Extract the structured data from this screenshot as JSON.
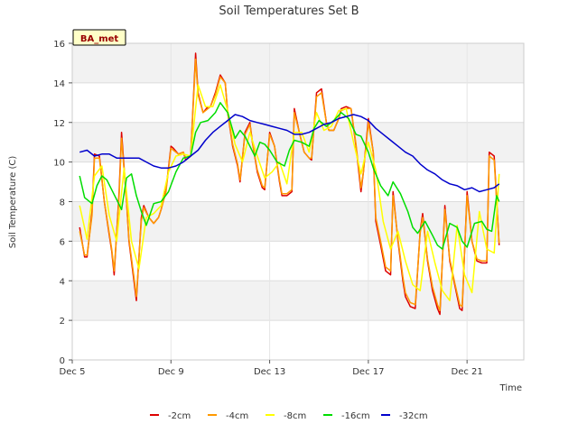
{
  "chart_data": {
    "type": "line",
    "title": "Soil Temperatures Set B",
    "xlabel": "Time",
    "ylabel": "Soil Temperature (C)",
    "badge": "BA_met",
    "ylim": [
      0,
      16
    ],
    "yticks": [
      0,
      2,
      4,
      6,
      8,
      10,
      12,
      14,
      16
    ],
    "xlim": [
      0,
      18.3
    ],
    "xticks": [
      {
        "value": 0,
        "label": "Dec 5"
      },
      {
        "value": 4,
        "label": "Dec 9"
      },
      {
        "value": 8,
        "label": "Dec 13"
      },
      {
        "value": 12,
        "label": "Dec 17"
      },
      {
        "value": 16,
        "label": "Dec 21"
      }
    ],
    "grid": true,
    "legend_position": "bottom",
    "series": [
      {
        "name": "-2cm",
        "color": "#dd0000",
        "x": [
          0.3,
          0.5,
          0.6,
          0.8,
          0.9,
          1.1,
          1.3,
          1.5,
          1.6,
          1.7,
          1.9,
          2.0,
          2.2,
          2.3,
          2.5,
          2.6,
          2.8,
          2.9,
          3.1,
          3.3,
          3.5,
          3.6,
          3.8,
          4.0,
          4.1,
          4.3,
          4.5,
          4.6,
          4.8,
          5.0,
          5.1,
          5.3,
          5.5,
          5.6,
          5.8,
          6.0,
          6.2,
          6.3,
          6.5,
          6.7,
          6.8,
          7.0,
          7.2,
          7.3,
          7.5,
          7.7,
          7.8,
          8.0,
          8.2,
          8.4,
          8.5,
          8.7,
          8.9,
          9.0,
          9.2,
          9.4,
          9.6,
          9.7,
          9.9,
          10.1,
          10.3,
          10.4,
          10.6,
          10.8,
          10.9,
          11.1,
          11.3,
          11.5,
          11.7,
          11.8,
          12.0,
          12.2,
          12.3,
          12.5,
          12.7,
          12.9,
          13.0,
          13.2,
          13.4,
          13.5,
          13.7,
          13.9,
          14.1,
          14.2,
          14.4,
          14.6,
          14.8,
          14.9,
          15.1,
          15.3,
          15.5,
          15.7,
          15.8,
          16.0,
          16.2,
          16.4,
          16.6,
          16.8,
          16.9,
          17.1,
          17.3
        ],
        "values": [
          6.7,
          5.2,
          5.2,
          7.5,
          10.4,
          10.3,
          8.0,
          6.3,
          5.5,
          4.3,
          8.5,
          11.5,
          8.0,
          6.0,
          4.0,
          3.0,
          7.2,
          7.8,
          7.2,
          6.9,
          7.2,
          7.6,
          8.6,
          10.8,
          10.7,
          10.4,
          10.5,
          10.1,
          10.3,
          15.5,
          13.5,
          12.5,
          12.8,
          12.8,
          13.5,
          14.4,
          14.0,
          12.5,
          10.8,
          9.8,
          9.0,
          11.5,
          12.0,
          11.0,
          9.5,
          8.7,
          8.6,
          11.5,
          10.8,
          9.0,
          8.3,
          8.3,
          8.5,
          12.7,
          11.5,
          10.5,
          10.2,
          10.1,
          13.5,
          13.7,
          12.0,
          11.6,
          11.6,
          12.2,
          12.7,
          12.8,
          12.7,
          10.8,
          8.5,
          9.5,
          12.2,
          10.5,
          7.0,
          5.8,
          4.5,
          4.3,
          8.5,
          6.0,
          4.0,
          3.2,
          2.7,
          2.6,
          6.5,
          7.4,
          5.0,
          3.5,
          2.6,
          2.3,
          7.8,
          5.0,
          3.8,
          2.6,
          2.5,
          8.5,
          6.0,
          5.0,
          4.9,
          4.9,
          10.5,
          10.3,
          5.8
        ]
      },
      {
        "name": "-4cm",
        "color": "#ff9900",
        "x": [
          0.3,
          0.5,
          0.6,
          0.8,
          0.9,
          1.1,
          1.3,
          1.5,
          1.6,
          1.7,
          1.9,
          2.0,
          2.2,
          2.3,
          2.5,
          2.6,
          2.8,
          2.9,
          3.1,
          3.3,
          3.5,
          3.6,
          3.8,
          4.0,
          4.1,
          4.3,
          4.5,
          4.6,
          4.8,
          5.0,
          5.1,
          5.3,
          5.5,
          5.6,
          5.8,
          6.0,
          6.2,
          6.3,
          6.5,
          6.7,
          6.8,
          7.0,
          7.2,
          7.3,
          7.5,
          7.7,
          7.8,
          8.0,
          8.2,
          8.4,
          8.5,
          8.7,
          8.9,
          9.0,
          9.2,
          9.4,
          9.6,
          9.7,
          9.9,
          10.1,
          10.3,
          10.4,
          10.6,
          10.8,
          10.9,
          11.1,
          11.3,
          11.5,
          11.7,
          11.8,
          12.0,
          12.2,
          12.3,
          12.5,
          12.7,
          12.9,
          13.0,
          13.2,
          13.4,
          13.5,
          13.7,
          13.9,
          14.1,
          14.2,
          14.4,
          14.6,
          14.8,
          14.9,
          15.1,
          15.3,
          15.5,
          15.7,
          15.8,
          16.0,
          16.2,
          16.4,
          16.6,
          16.8,
          16.9,
          17.1,
          17.3
        ],
        "values": [
          6.5,
          5.3,
          5.3,
          7.3,
          10.2,
          10.2,
          8.0,
          6.4,
          5.6,
          4.5,
          8.3,
          11.2,
          8.0,
          6.1,
          4.2,
          3.2,
          7.0,
          7.7,
          7.2,
          6.9,
          7.2,
          7.6,
          8.5,
          10.7,
          10.6,
          10.4,
          10.5,
          10.2,
          10.3,
          15.2,
          13.4,
          12.5,
          12.7,
          12.8,
          13.4,
          14.3,
          14.0,
          12.5,
          10.9,
          9.9,
          9.1,
          11.4,
          11.9,
          11.0,
          9.6,
          8.8,
          8.7,
          11.4,
          10.8,
          9.1,
          8.4,
          8.4,
          8.6,
          12.5,
          11.5,
          10.5,
          10.2,
          10.2,
          13.3,
          13.5,
          12.0,
          11.6,
          11.6,
          12.2,
          12.6,
          12.7,
          12.7,
          10.9,
          8.7,
          9.5,
          12.0,
          10.5,
          7.2,
          6.0,
          4.7,
          4.5,
          8.3,
          6.1,
          4.2,
          3.4,
          2.9,
          2.8,
          6.4,
          7.2,
          5.1,
          3.7,
          2.8,
          2.5,
          7.6,
          5.1,
          3.9,
          2.8,
          2.7,
          8.3,
          6.0,
          5.1,
          5.0,
          5.0,
          10.3,
          10.1,
          5.9
        ]
      },
      {
        "name": "-8cm",
        "color": "#ffff00",
        "x": [
          0.3,
          0.6,
          0.9,
          1.2,
          1.5,
          1.8,
          2.1,
          2.4,
          2.7,
          3.0,
          3.3,
          3.6,
          3.9,
          4.2,
          4.5,
          4.8,
          5.1,
          5.4,
          5.7,
          6.0,
          6.3,
          6.6,
          6.9,
          7.2,
          7.5,
          7.8,
          8.1,
          8.4,
          8.7,
          9.0,
          9.3,
          9.6,
          9.9,
          10.2,
          10.5,
          10.8,
          11.1,
          11.4,
          11.7,
          12.0,
          12.3,
          12.6,
          12.9,
          13.2,
          13.5,
          13.8,
          14.1,
          14.4,
          14.7,
          15.0,
          15.3,
          15.6,
          15.9,
          16.2,
          16.5,
          16.8,
          17.1,
          17.3
        ],
        "values": [
          7.8,
          6.1,
          9.3,
          9.8,
          7.3,
          6.0,
          9.7,
          6.0,
          4.6,
          7.2,
          7.4,
          7.8,
          9.5,
          10.3,
          10.4,
          10.3,
          13.9,
          12.8,
          12.8,
          13.9,
          12.6,
          10.9,
          10.0,
          11.5,
          10.3,
          9.2,
          9.5,
          10.0,
          8.9,
          11.5,
          11.5,
          10.5,
          12.5,
          11.6,
          11.8,
          12.6,
          12.7,
          11.0,
          9.4,
          11.0,
          9.6,
          7.0,
          5.6,
          6.5,
          5.0,
          3.8,
          3.5,
          6.5,
          4.9,
          3.5,
          3.0,
          6.8,
          4.3,
          3.4,
          7.5,
          5.6,
          5.4,
          9.4
        ]
      },
      {
        "name": "-16cm",
        "color": "#00dd00",
        "x": [
          0.3,
          0.5,
          0.8,
          1.0,
          1.2,
          1.4,
          1.6,
          1.8,
          2.0,
          2.2,
          2.4,
          2.6,
          2.8,
          3.0,
          3.3,
          3.6,
          3.9,
          4.2,
          4.5,
          4.8,
          5.0,
          5.2,
          5.5,
          5.8,
          6.0,
          6.3,
          6.6,
          6.8,
          7.0,
          7.2,
          7.4,
          7.6,
          7.8,
          8.0,
          8.3,
          8.6,
          8.8,
          9.0,
          9.3,
          9.6,
          9.8,
          10.0,
          10.3,
          10.6,
          10.9,
          11.2,
          11.5,
          11.7,
          12.0,
          12.2,
          12.5,
          12.8,
          13.0,
          13.3,
          13.6,
          13.8,
          14.0,
          14.3,
          14.6,
          14.8,
          15.0,
          15.3,
          15.6,
          15.8,
          16.0,
          16.3,
          16.6,
          16.8,
          17.0,
          17.2,
          17.3
        ],
        "values": [
          9.3,
          8.2,
          7.9,
          8.8,
          9.3,
          9.1,
          8.6,
          8.1,
          7.6,
          9.2,
          9.4,
          8.3,
          7.5,
          6.8,
          7.9,
          8.0,
          8.5,
          9.5,
          10.2,
          10.3,
          11.5,
          12.0,
          12.1,
          12.5,
          13.0,
          12.5,
          11.2,
          11.6,
          11.3,
          10.8,
          10.3,
          11.0,
          10.9,
          10.6,
          10.0,
          9.8,
          10.6,
          11.1,
          11.0,
          10.8,
          11.7,
          12.1,
          11.8,
          12.1,
          12.5,
          12.2,
          11.4,
          11.3,
          10.5,
          9.7,
          8.8,
          8.3,
          9.0,
          8.4,
          7.5,
          6.7,
          6.4,
          7.0,
          6.3,
          5.8,
          5.6,
          6.9,
          6.7,
          6.0,
          5.7,
          6.9,
          7.0,
          6.6,
          6.5,
          8.3,
          8.0
        ]
      },
      {
        "name": "-32cm",
        "color": "#0000cc",
        "x": [
          0.3,
          0.6,
          0.9,
          1.2,
          1.5,
          1.8,
          2.1,
          2.4,
          2.7,
          3.0,
          3.3,
          3.6,
          3.9,
          4.2,
          4.5,
          4.8,
          5.1,
          5.4,
          5.7,
          6.0,
          6.3,
          6.6,
          6.9,
          7.2,
          7.5,
          7.8,
          8.1,
          8.4,
          8.7,
          9.0,
          9.3,
          9.6,
          9.9,
          10.2,
          10.5,
          10.8,
          11.1,
          11.4,
          11.7,
          12.0,
          12.3,
          12.6,
          12.9,
          13.2,
          13.5,
          13.8,
          14.1,
          14.4,
          14.7,
          15.0,
          15.3,
          15.6,
          15.9,
          16.2,
          16.5,
          16.8,
          17.1,
          17.3
        ],
        "values": [
          10.5,
          10.6,
          10.3,
          10.4,
          10.4,
          10.2,
          10.2,
          10.2,
          10.2,
          10.0,
          9.8,
          9.7,
          9.7,
          9.8,
          10.0,
          10.3,
          10.6,
          11.1,
          11.5,
          11.8,
          12.1,
          12.4,
          12.3,
          12.1,
          12.0,
          11.9,
          11.8,
          11.7,
          11.6,
          11.4,
          11.4,
          11.5,
          11.7,
          11.9,
          12.0,
          12.2,
          12.3,
          12.4,
          12.3,
          12.1,
          11.7,
          11.4,
          11.1,
          10.8,
          10.5,
          10.3,
          9.9,
          9.6,
          9.4,
          9.1,
          8.9,
          8.8,
          8.6,
          8.7,
          8.5,
          8.6,
          8.7,
          8.9
        ]
      }
    ]
  }
}
